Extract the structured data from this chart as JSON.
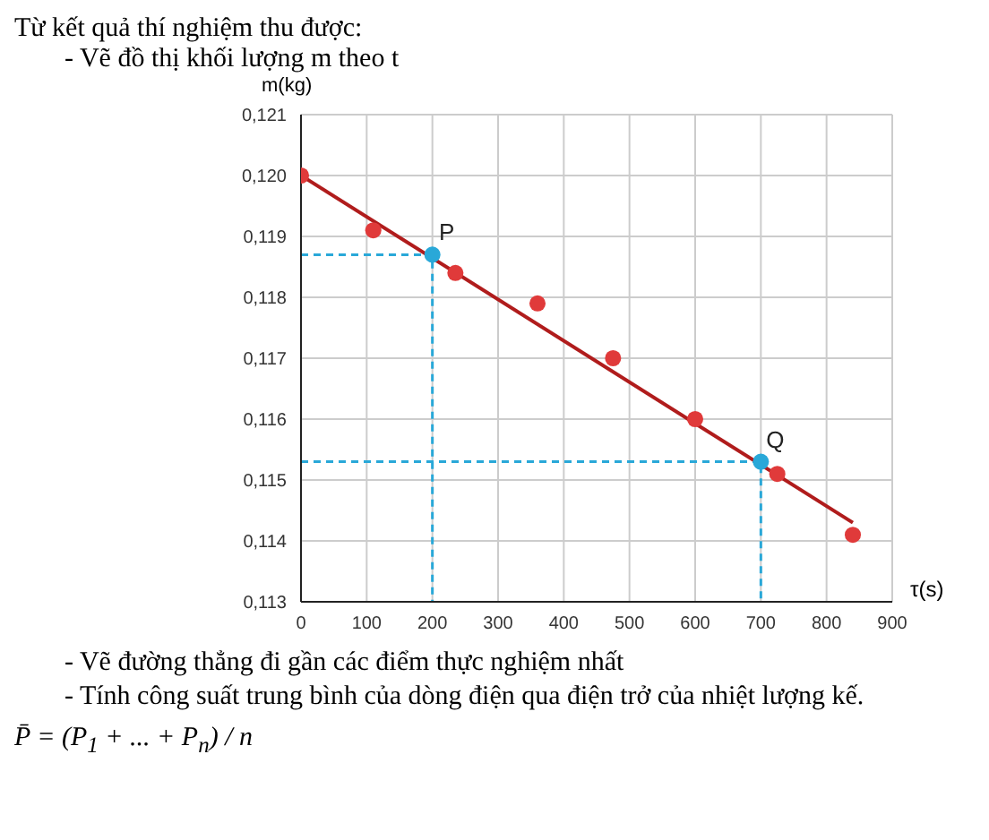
{
  "chart_data": {
    "type": "scatter",
    "title": "Từ kết quả thí nghiệm thu được:",
    "subtitle": "- Vẽ đồ thị khối lượng m theo t",
    "xlabel": "τ(s)",
    "ylabel": "m(kg)",
    "xlim": [
      0,
      900
    ],
    "xticks": [
      0,
      100,
      200,
      300,
      400,
      500,
      600,
      700,
      800,
      900
    ],
    "ylim": [
      0.113,
      0.121
    ],
    "yticks": [
      {
        "value": 0.113,
        "label": "0,113"
      },
      {
        "value": 0.114,
        "label": "0,114"
      },
      {
        "value": 0.115,
        "label": "0,115"
      },
      {
        "value": 0.116,
        "label": "0,116"
      },
      {
        "value": 0.117,
        "label": "0,117"
      },
      {
        "value": 0.118,
        "label": "0,118"
      },
      {
        "value": 0.119,
        "label": "0,119"
      },
      {
        "value": 0.12,
        "label": "0,120"
      },
      {
        "value": 0.121,
        "label": "0,121"
      }
    ],
    "grid": true,
    "marker": "circle",
    "series": [
      {
        "type": "line",
        "color": "#29a8d8",
        "line_style": "dashed",
        "marker": "none",
        "x": [
          0,
          200,
          200
        ],
        "values": [
          0.1187,
          0.1187,
          0.113
        ]
      },
      {
        "type": "line",
        "color": "#29a8d8",
        "line_style": "dashed",
        "marker": "none",
        "x": [
          0,
          700,
          700
        ],
        "values": [
          0.1153,
          0.1153,
          0.113
        ]
      },
      {
        "type": "line",
        "color": "#b01c1c",
        "line_style": "solid",
        "marker": "none",
        "x": [
          0,
          840
        ],
        "values": [
          0.12,
          0.1143
        ]
      },
      {
        "color": "#e03a3a",
        "x": [
          0,
          110,
          235,
          360,
          475,
          600,
          725,
          840
        ],
        "values": [
          0.12,
          0.1191,
          0.1184,
          0.1179,
          0.117,
          0.116,
          0.1151,
          0.1141
        ]
      },
      {
        "color": "#29a8d8",
        "x": [
          200,
          700
        ],
        "values": [
          0.1187,
          0.1153
        ]
      }
    ],
    "annotations": [
      {
        "text": "P",
        "x": 200,
        "y": 0.1187
      },
      {
        "text": "Q",
        "x": 700,
        "y": 0.1153
      },
      "- Vẽ đường thẳng đi gần các điểm thực nghiệm nhất",
      "- Tính công suất trung bình của dòng điện qua điện trở của nhiệt lượng kế.",
      "P̄ = (P$_{1}$ + ... + P$_{n}$) / n"
    ]
  }
}
